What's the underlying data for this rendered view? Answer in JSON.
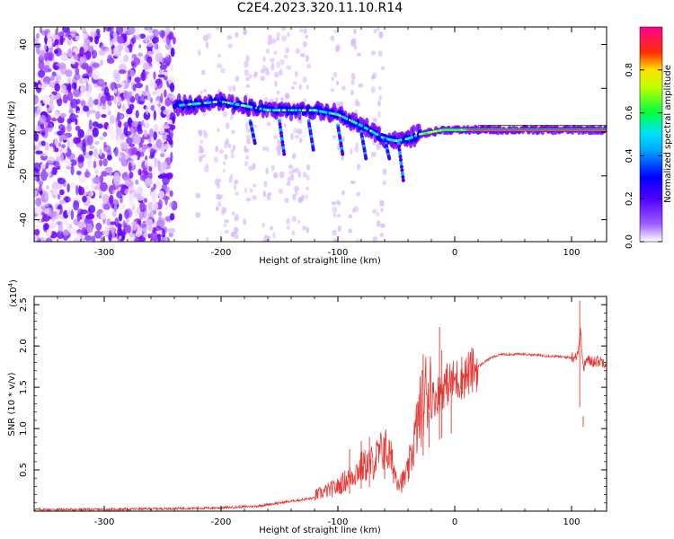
{
  "figure_title": "C2E4.2023.320.11.10.R14",
  "chart_data": [
    {
      "type": "heatmap",
      "title": "C2E4.2023.320.11.10.R14",
      "xlabel": "Height of straight line (km)",
      "ylabel": "Frequency (Hz)",
      "xlim": [
        -360,
        130
      ],
      "ylim": [
        -50,
        48
      ],
      "xticks": [
        -300,
        -200,
        -100,
        0,
        100
      ],
      "yticks": [
        -40,
        -20,
        0,
        20,
        40
      ],
      "colorbar": {
        "label": "Normalized spectral amplitude",
        "range": [
          0.0,
          1.0
        ],
        "ticks": [
          0.0,
          0.2,
          0.4,
          0.6,
          0.8
        ],
        "colormap": [
          "#ffffff",
          "#7a00ff",
          "#0000ff",
          "#00d0ff",
          "#00ff60",
          "#ffff00",
          "#ff2020",
          "#ff0090"
        ]
      },
      "ridge": {
        "x": [
          -240,
          -220,
          -200,
          -180,
          -160,
          -140,
          -120,
          -100,
          -80,
          -70,
          -60,
          -50,
          -40,
          -30,
          -20,
          -10,
          0,
          20,
          40,
          60,
          80,
          100,
          110,
          130
        ],
        "y": [
          12,
          13,
          14,
          12,
          10,
          10,
          10,
          8,
          3,
          0,
          -3,
          -4,
          -3,
          -1,
          0,
          1,
          1,
          1,
          1,
          1,
          1,
          1,
          1,
          1
        ]
      },
      "noise_region_end_x": -240
    },
    {
      "type": "line",
      "xlabel": "Height of straight line (km)",
      "ylabel": "SNR (10 * v/v)",
      "y_multiplier": "(x10",
      "y_exponent": "4",
      "y_multiplier_close": ")",
      "xlim": [
        -360,
        130
      ],
      "ylim": [
        0,
        2.6
      ],
      "xticks": [
        -300,
        -200,
        -100,
        0,
        100
      ],
      "yticks": [
        0.5,
        1.0,
        1.5,
        2.0,
        2.5
      ],
      "color": "#e53935",
      "envelope": {
        "x": [
          -360,
          -300,
          -250,
          -200,
          -170,
          -150,
          -120,
          -100,
          -90,
          -80,
          -70,
          -60,
          -55,
          -50,
          -45,
          -40,
          -35,
          -30,
          -25,
          -20,
          -15,
          -10,
          -5,
          0,
          10,
          20,
          30,
          40,
          50,
          60,
          80,
          90,
          100,
          105,
          108,
          110,
          112,
          115,
          120,
          130
        ],
        "y": [
          0.02,
          0.02,
          0.03,
          0.04,
          0.06,
          0.1,
          0.16,
          0.25,
          0.35,
          0.45,
          0.5,
          0.65,
          0.55,
          0.35,
          0.3,
          0.4,
          0.7,
          1.0,
          1.2,
          1.35,
          1.4,
          1.5,
          1.55,
          1.58,
          1.65,
          1.75,
          1.85,
          1.9,
          1.9,
          1.9,
          1.88,
          1.87,
          1.86,
          1.9,
          2.2,
          1.7,
          1.82,
          1.82,
          1.82,
          1.81
        ]
      },
      "spikes": [
        {
          "x": -90,
          "y": 0.75
        },
        {
          "x": -80,
          "y": 0.85
        },
        {
          "x": -73,
          "y": 0.9
        },
        {
          "x": -60,
          "y": 0.88
        },
        {
          "x": -27,
          "y": 1.9
        },
        {
          "x": -22,
          "y": 1.2
        },
        {
          "x": -13,
          "y": 2.23
        },
        {
          "x": -11,
          "y": 1.95
        },
        {
          "x": -3,
          "y": 1.7
        },
        {
          "x": 107,
          "y": 2.55
        },
        {
          "x": 110,
          "y": 1.15
        }
      ]
    }
  ]
}
